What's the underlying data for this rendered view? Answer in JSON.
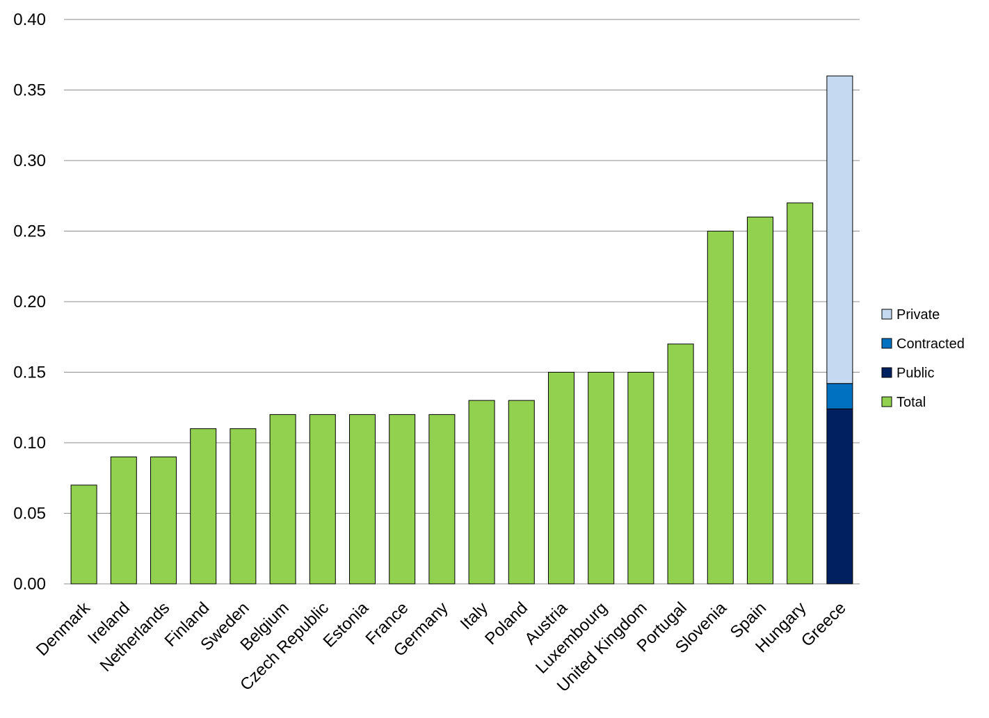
{
  "chart_data": {
    "type": "bar",
    "categories": [
      "Denmark",
      "Ireland",
      "Netherlands",
      "Finland",
      "Sweden",
      "Belgium",
      "Czech Republic",
      "Estonia",
      "France",
      "Germany",
      "Italy",
      "Poland",
      "Austria",
      "Luxembourg",
      "United Kingdom",
      "Portugal",
      "Slovenia",
      "Spain",
      "Hungary",
      "Greece"
    ],
    "series": [
      {
        "name": "Total",
        "color": "#92D050",
        "values": [
          0.07,
          0.09,
          0.09,
          0.11,
          0.11,
          0.12,
          0.12,
          0.12,
          0.12,
          0.12,
          0.13,
          0.13,
          0.15,
          0.15,
          0.15,
          0.17,
          0.25,
          0.26,
          0.27,
          null
        ]
      },
      {
        "name": "Public",
        "color": "#002060",
        "values": [
          null,
          null,
          null,
          null,
          null,
          null,
          null,
          null,
          null,
          null,
          null,
          null,
          null,
          null,
          null,
          null,
          null,
          null,
          null,
          0.124
        ]
      },
      {
        "name": "Contracted",
        "color": "#0070C0",
        "values": [
          null,
          null,
          null,
          null,
          null,
          null,
          null,
          null,
          null,
          null,
          null,
          null,
          null,
          null,
          null,
          null,
          null,
          null,
          null,
          0.018
        ]
      },
      {
        "name": "Private",
        "color": "#C5D9F1",
        "values": [
          null,
          null,
          null,
          null,
          null,
          null,
          null,
          null,
          null,
          null,
          null,
          null,
          null,
          null,
          null,
          null,
          null,
          null,
          null,
          0.218
        ]
      }
    ],
    "stacked": true,
    "title": "",
    "xlabel": "",
    "ylabel": "",
    "ylim": [
      0,
      0.4
    ],
    "yticks": [
      "0.00",
      "0.05",
      "0.10",
      "0.15",
      "0.20",
      "0.25",
      "0.30",
      "0.35",
      "0.40"
    ],
    "grid": true,
    "legend_position": "right",
    "legend_order": [
      "Private",
      "Contracted",
      "Public",
      "Total"
    ]
  }
}
